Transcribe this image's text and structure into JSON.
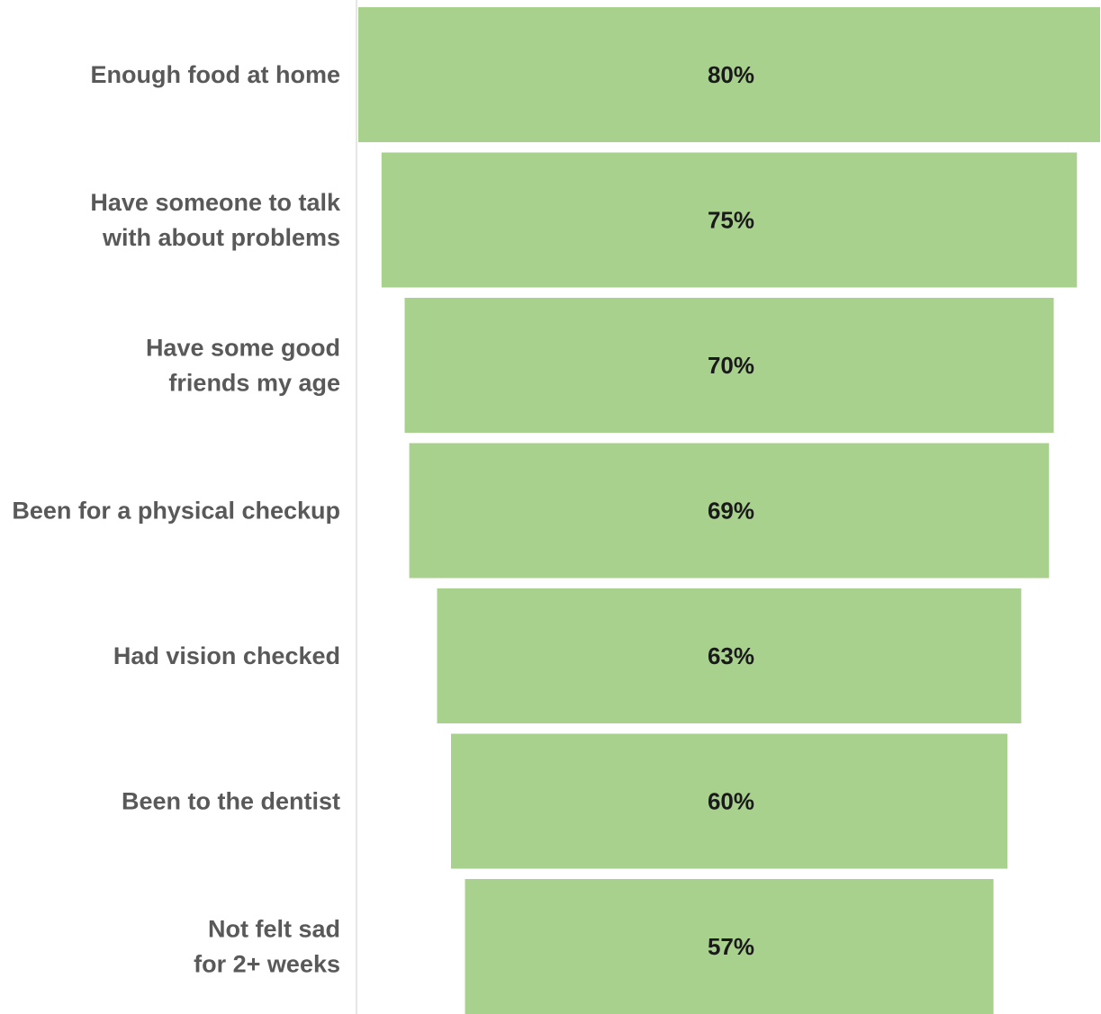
{
  "chart_data": {
    "type": "bar",
    "orientation": "horizontal-centered",
    "categories": [
      [
        "Enough food at home"
      ],
      [
        "Have someone to talk",
        "with about problems"
      ],
      [
        "Have some good",
        "friends my age"
      ],
      [
        "Been for a physical checkup"
      ],
      [
        "Had vision checked"
      ],
      [
        "Been to the dentist"
      ],
      [
        "Not felt sad",
        "for 2+ weeks"
      ]
    ],
    "values": [
      80,
      75,
      70,
      69,
      63,
      60,
      57
    ],
    "data_labels": [
      "80%",
      "75%",
      "70%",
      "69%",
      "63%",
      "60%",
      "57%"
    ],
    "unit": "%",
    "title": "",
    "xlabel": "",
    "ylabel": "",
    "grid": false,
    "legend": "none",
    "colors": {
      "bar": "#a9d18e",
      "category_text": "#595959",
      "value_text": "#1a1a1a",
      "axis_line": "#e6e6e6"
    }
  }
}
